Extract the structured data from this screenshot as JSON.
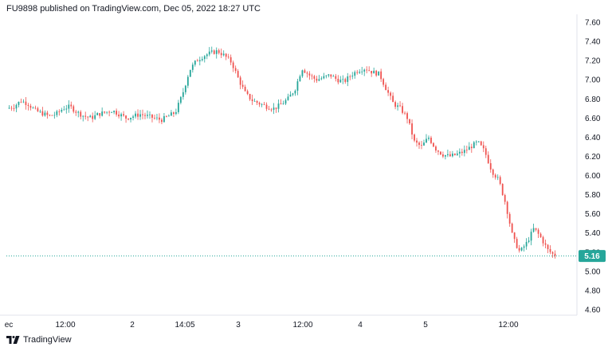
{
  "header": {
    "published_text": "FU9898 published on TradingView.com, Dec 05, 2022 18:27 UTC"
  },
  "brand": {
    "name": "TradingView",
    "logo_icon": "tradingview-logo-icon"
  },
  "colors": {
    "up": "#26a69a",
    "down": "#ef5350",
    "last_price_bg": "#26a69a",
    "grid": "#f0f3fa",
    "axis_line": "#e0e3eb"
  },
  "chart_data": {
    "type": "candlestick",
    "title": "",
    "xlabel": "",
    "ylabel": "",
    "ylim": [
      4.6,
      7.6
    ],
    "y_ticks": [
      "7.60",
      "7.40",
      "7.20",
      "7.00",
      "6.80",
      "6.60",
      "6.40",
      "6.20",
      "6.00",
      "5.80",
      "5.60",
      "5.40",
      "5.20",
      "5.00",
      "4.80",
      "4.60"
    ],
    "x_ticks": [
      "ec",
      "12:00",
      "2",
      "14:05",
      "3",
      "12:00",
      "4",
      "5",
      "12:00"
    ],
    "last_price": "5.16",
    "last_price_line": "dotted",
    "grid": false,
    "price_path_approx": [
      6.7,
      6.72,
      6.78,
      6.75,
      6.68,
      6.65,
      6.62,
      6.64,
      6.7,
      6.72,
      6.66,
      6.62,
      6.6,
      6.64,
      6.66,
      6.68,
      6.64,
      6.6,
      6.62,
      6.64,
      6.62,
      6.6,
      6.58,
      6.62,
      6.66,
      6.85,
      7.1,
      7.2,
      7.25,
      7.28,
      7.3,
      7.25,
      7.18,
      7.0,
      6.85,
      6.78,
      6.75,
      6.72,
      6.7,
      6.74,
      6.8,
      6.9,
      7.12,
      7.05,
      7.0,
      7.02,
      7.05,
      7.0,
      6.98,
      7.05,
      7.1,
      7.12,
      7.08,
      7.06,
      6.9,
      6.75,
      6.7,
      6.6,
      6.35,
      6.3,
      6.4,
      6.28,
      6.22,
      6.2,
      6.22,
      6.25,
      6.3,
      6.35,
      6.25,
      6.05,
      5.95,
      5.7,
      5.35,
      5.2,
      5.3,
      5.45,
      5.35,
      5.22,
      5.16
    ]
  }
}
